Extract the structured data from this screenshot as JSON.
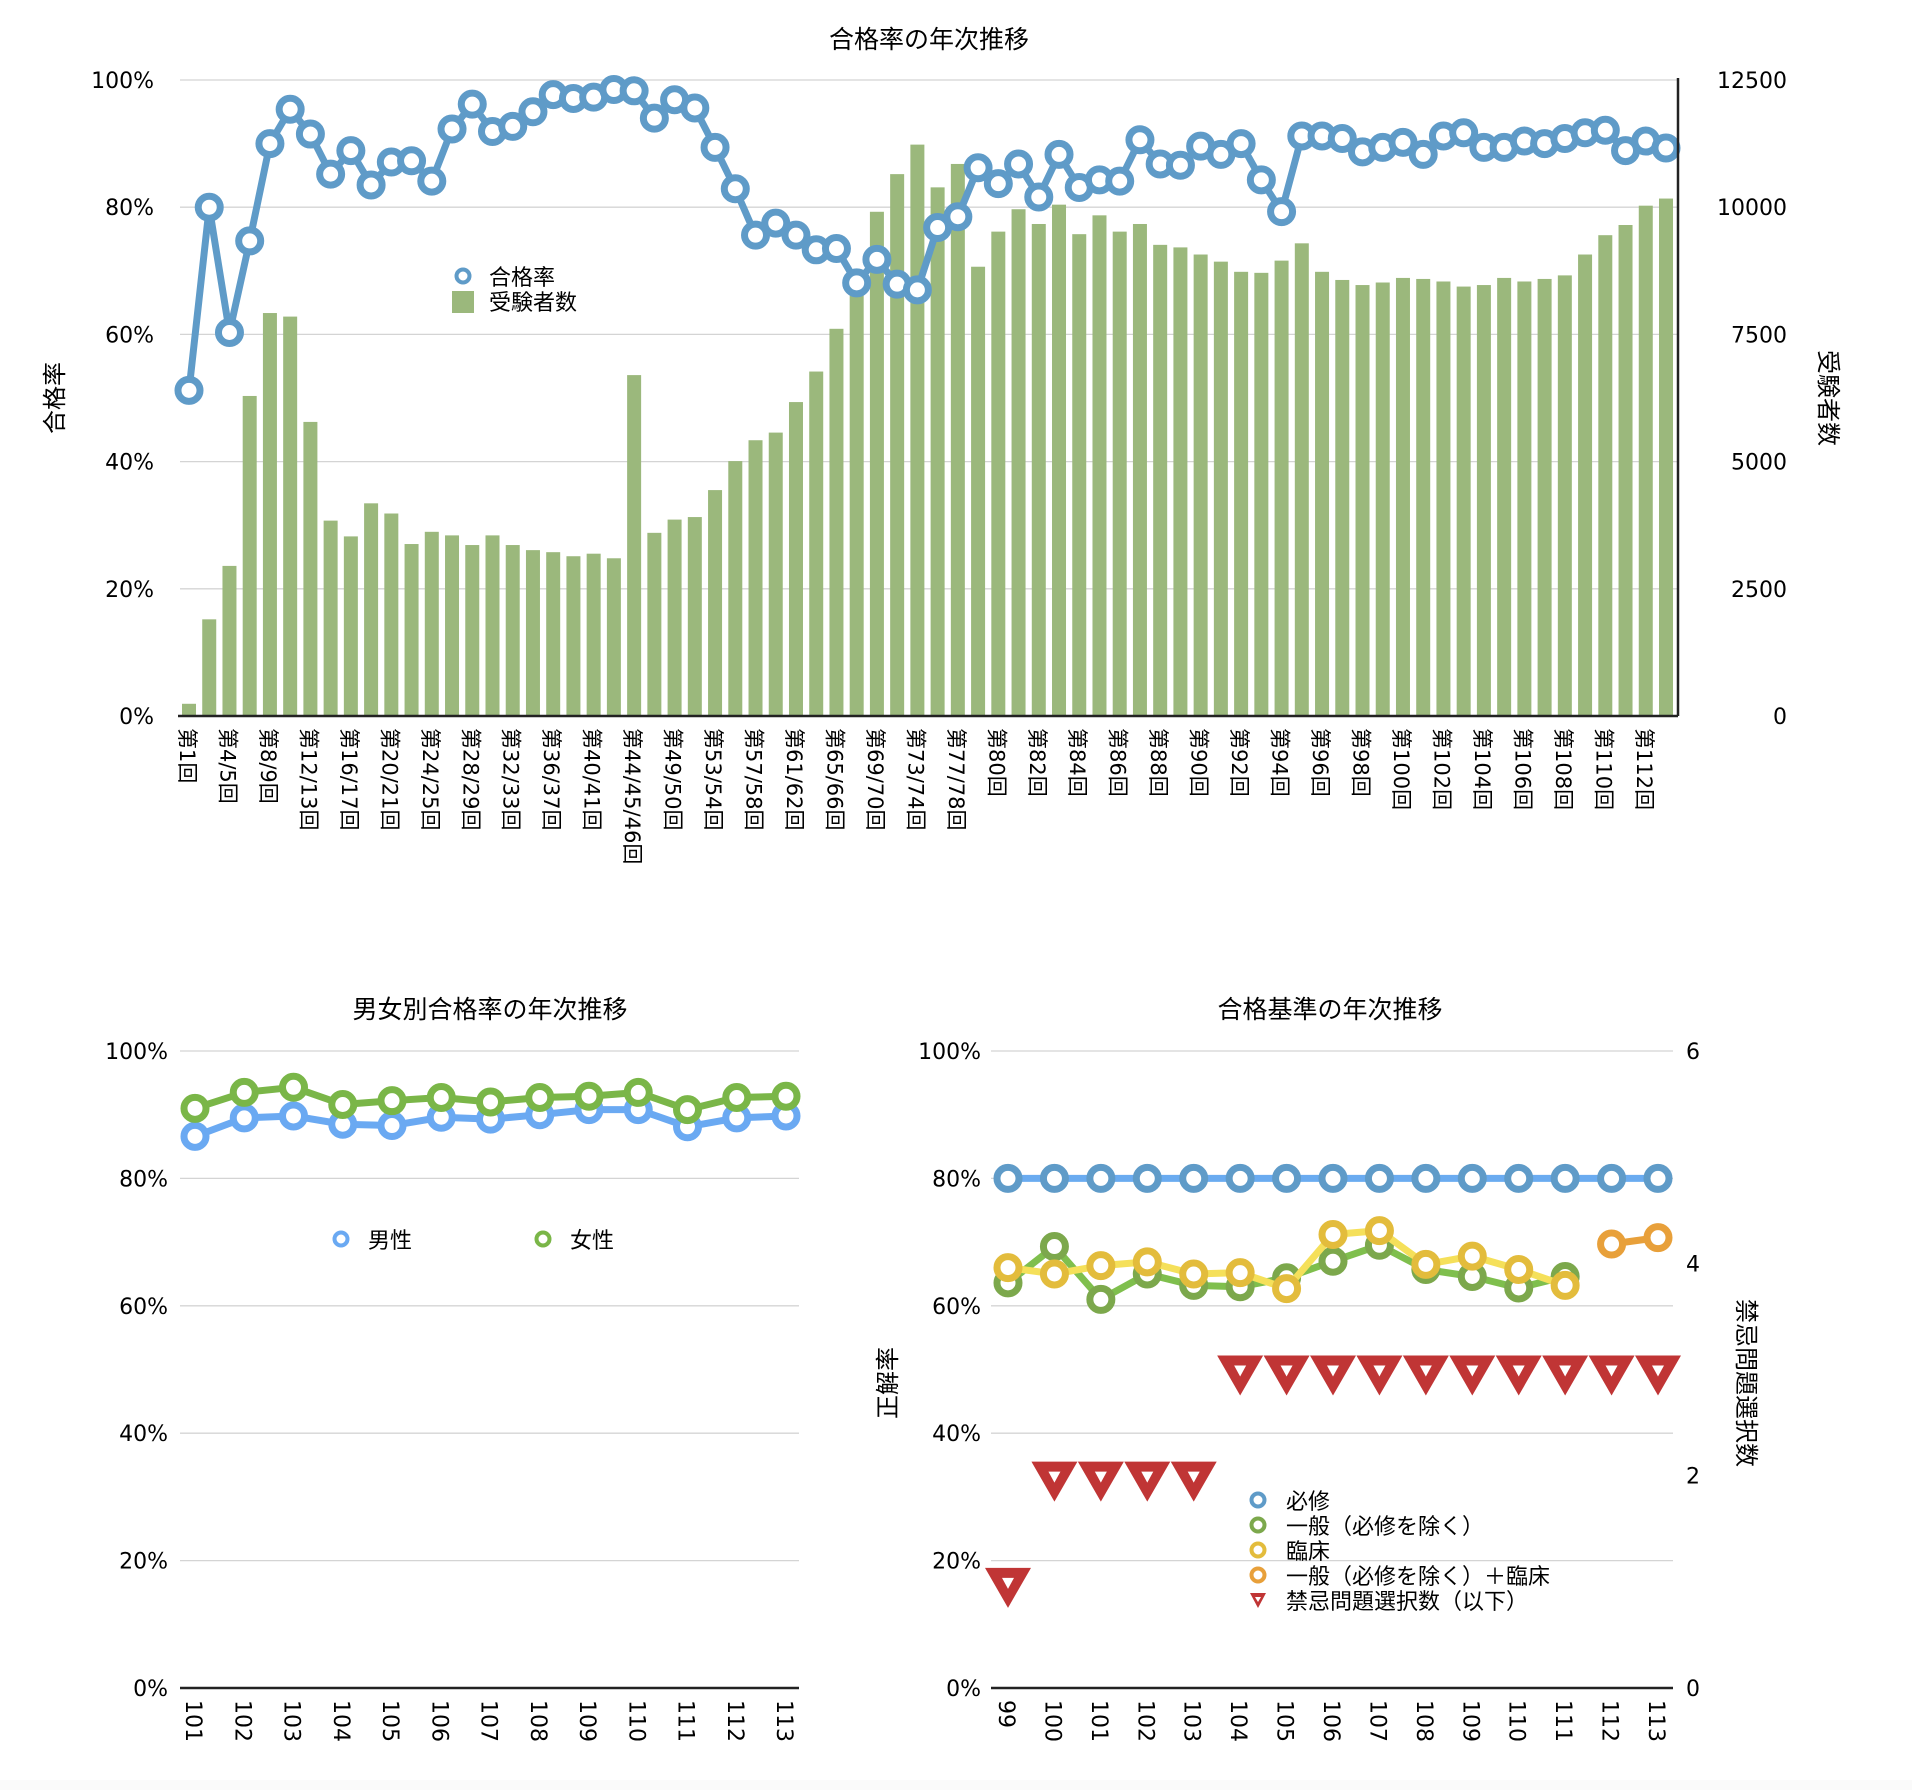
{
  "charts": {
    "top": {
      "chart_data": {
        "type": "bar+line",
        "title": "合格率の年次推移",
        "ylabel_left": "合格率",
        "ylabel_right": "受験者数",
        "ylim_left": [
          0,
          100
        ],
        "ylim_right": [
          0,
          12500
        ],
        "yticks_left": [
          "0%",
          "20%",
          "40%",
          "60%",
          "80%",
          "100%"
        ],
        "yticks_right": [
          "0",
          "2500",
          "5000",
          "7500",
          "10000",
          "12500"
        ],
        "grid": true,
        "legend_position": "upper-middle-left",
        "x_tick_labels": [
          "第1回",
          "第4/5回",
          "第8/9回",
          "第12/13回",
          "第16/17回",
          "第20/21回",
          "第24/25回",
          "第28/29回",
          "第32/33回",
          "第36/37回",
          "第40/41回",
          "第44/45/46回",
          "第49/50回",
          "第53/54回",
          "第57/58回",
          "第61/62回",
          "第65/66回",
          "第69/70回",
          "第73/74回",
          "第77/78回",
          "第80回",
          "第82回",
          "第84回",
          "第86回",
          "第88回",
          "第90回",
          "第92回",
          "第94回",
          "第96回",
          "第98回",
          "第100回",
          "第102回",
          "第104回",
          "第106回",
          "第108回",
          "第110回",
          "第112回"
        ],
        "x_tick_every": 2,
        "series": [
          {
            "name": "合格率",
            "type": "line",
            "axis": "left",
            "color": "#5f9bc8",
            "values": [
              51.2,
              80.0,
              60.3,
              74.7,
              90.0,
              95.4,
              91.5,
              85.2,
              88.9,
              83.5,
              87.1,
              87.3,
              84.1,
              92.3,
              96.2,
              91.9,
              92.7,
              95.0,
              97.7,
              97.1,
              97.3,
              98.5,
              98.3,
              94.0,
              96.9,
              95.6,
              89.4,
              82.9,
              75.6,
              77.5,
              75.6,
              73.3,
              73.5,
              68.1,
              71.8,
              67.9,
              67.0,
              76.8,
              78.5,
              86.2,
              83.7,
              86.8,
              81.6,
              88.3,
              83.1,
              84.3,
              84.1,
              90.6,
              86.8,
              86.6,
              89.6,
              88.3,
              90.0,
              84.3,
              79.3,
              91.2,
              91.2,
              90.8,
              88.7,
              89.4,
              90.2,
              88.3,
              91.2,
              91.7,
              89.4,
              89.4,
              90.4,
              90.0,
              90.8,
              91.7,
              92.1,
              88.9,
              90.4,
              89.3
            ]
          },
          {
            "name": "受験者数",
            "type": "bar",
            "axis": "right",
            "color": "#9bb87c",
            "values": [
              240,
              1900,
              2950,
              6290,
              7920,
              7850,
              5780,
              3840,
              3530,
              4180,
              3980,
              3380,
              3620,
              3550,
              3360,
              3550,
              3360,
              3260,
              3220,
              3140,
              3190,
              3100,
              6700,
              3600,
              3860,
              3910,
              4440,
              5010,
              5420,
              5570,
              6170,
              6770,
              7610,
              8570,
              9910,
              10650,
              11230,
              10390,
              10850,
              8830,
              9520,
              9960,
              9670,
              10050,
              9470,
              9840,
              9520,
              9670,
              9260,
              9210,
              9070,
              8930,
              8730,
              8710,
              8950,
              9290,
              8730,
              8570,
              8470,
              8520,
              8610,
              8590,
              8540,
              8440,
              8470,
              8610,
              8540,
              8590,
              8660,
              9070,
              9450,
              9650,
              10030,
              10170
            ]
          }
        ]
      }
    },
    "gender": {
      "chart_data": {
        "type": "line",
        "title": "男女別合格率の年次推移",
        "categories": [
          "101",
          "102",
          "103",
          "104",
          "105",
          "106",
          "107",
          "108",
          "109",
          "110",
          "111",
          "112",
          "113"
        ],
        "ylim": [
          0,
          100
        ],
        "yticks": [
          "0%",
          "20%",
          "40%",
          "60%",
          "80%",
          "100%"
        ],
        "grid": true,
        "legend_position": "upper-center",
        "series": [
          {
            "name": "男性",
            "color": "#6aa9f2",
            "values": [
              86.6,
              89.5,
              89.8,
              88.5,
              88.3,
              89.6,
              89.3,
              90.0,
              90.8,
              90.8,
              88.1,
              89.5,
              89.8
            ]
          },
          {
            "name": "女性",
            "color": "#7ab648",
            "values": [
              91.0,
              93.5,
              94.3,
              91.6,
              92.2,
              92.7,
              92.0,
              92.7,
              92.9,
              93.5,
              90.8,
              92.7,
              92.9
            ]
          }
        ]
      }
    },
    "criteria": {
      "chart_data": {
        "type": "line",
        "title": "合格基準の年次推移",
        "ylabel_left": "正解率",
        "ylabel_right": "禁忌問題選択数",
        "categories": [
          "99",
          "100",
          "101",
          "102",
          "103",
          "104",
          "105",
          "106",
          "107",
          "108",
          "109",
          "110",
          "111",
          "112",
          "113"
        ],
        "ylim_left": [
          0,
          100
        ],
        "ylim_right": [
          0,
          6
        ],
        "yticks_left": [
          "0%",
          "20%",
          "40%",
          "60%",
          "80%",
          "100%"
        ],
        "yticks_right": [
          "0",
          "2",
          "4",
          "6"
        ],
        "grid": true,
        "legend_position": "lower-center",
        "series": [
          {
            "name": "必修",
            "axis": "left",
            "color": "#5f9bc8",
            "line_color": "#6aabf0",
            "marker": "circle",
            "values": [
              80,
              80,
              80,
              80,
              80,
              80,
              80,
              80,
              80,
              80,
              80,
              80,
              80,
              80,
              80
            ]
          },
          {
            "name": "一般（必修を除く）",
            "axis": "left",
            "color": "#7ca84c",
            "line_color": "#7fbf4d",
            "marker": "circle",
            "values": [
              63.6,
              69.3,
              61.0,
              65.0,
              63.2,
              63.0,
              64.4,
              67.0,
              69.5,
              65.7,
              64.6,
              62.8,
              64.6,
              null,
              null
            ]
          },
          {
            "name": "臨床",
            "axis": "left",
            "color": "#e3bc3c",
            "line_color": "#f5e05a",
            "marker": "circle",
            "values": [
              66.0,
              65.0,
              66.3,
              66.9,
              65.0,
              65.2,
              62.7,
              71.2,
              71.8,
              66.5,
              67.8,
              65.7,
              63.2,
              null,
              null
            ]
          },
          {
            "name": "一般（必修を除く）＋臨床",
            "axis": "left",
            "color": "#e8a03a",
            "line_color": "#e8a03a",
            "marker": "circle",
            "values": [
              null,
              null,
              null,
              null,
              null,
              null,
              null,
              null,
              null,
              null,
              null,
              null,
              null,
              69.7,
              70.7
            ]
          },
          {
            "name": "禁忌問題選択数（以下）",
            "axis": "right",
            "color": "#c03535",
            "marker": "triangle-down",
            "values": [
              1,
              2,
              2,
              2,
              2,
              3,
              3,
              3,
              3,
              3,
              3,
              3,
              3,
              3,
              3
            ]
          }
        ]
      }
    }
  }
}
